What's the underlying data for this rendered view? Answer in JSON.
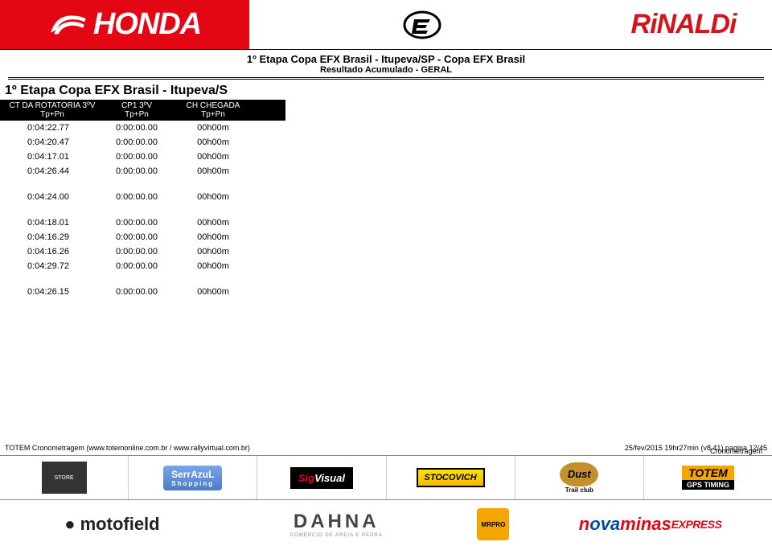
{
  "banner": {
    "honda": "HONDA",
    "rinaldi": "RiNALDi"
  },
  "header": {
    "title": "1º Etapa Copa EFX Brasil - Itupeva/SP - Copa EFX Brasil",
    "subtitle": "Resultado Acumulado - GERAL"
  },
  "event_title": "1º Etapa Copa EFX Brasil - Itupeva/S",
  "columns": {
    "c1_l1": "CT DA ROTATORIA 3ºV",
    "c1_l2": "Tp+Pn",
    "c2_l1": "CP1 3ºV",
    "c2_l2": "Tp+Pn",
    "c3_l1": "CH CHEGADA",
    "c3_l2": "Tp+Pn"
  },
  "rows": [
    {
      "v1": "0:04:22.77",
      "v2": "0:00:00.00",
      "v3": "00h00m",
      "gap_after": false
    },
    {
      "v1": "0:04:20.47",
      "v2": "0:00:00.00",
      "v3": "00h00m",
      "gap_after": false
    },
    {
      "v1": "0:04:17.01",
      "v2": "0:00:00.00",
      "v3": "00h00m",
      "gap_after": false
    },
    {
      "v1": "0:04:26.44",
      "v2": "0:00:00.00",
      "v3": "00h00m",
      "gap_after": true
    },
    {
      "v1": "0:04:24.00",
      "v2": "0:00:00.00",
      "v3": "00h00m",
      "gap_after": true
    },
    {
      "v1": "0:04:18.01",
      "v2": "0:00:00.00",
      "v3": "00h00m",
      "gap_after": false
    },
    {
      "v1": "0:04:16.29",
      "v2": "0:00:00.00",
      "v3": "00h00m",
      "gap_after": false
    },
    {
      "v1": "0:04:16.26",
      "v2": "0:00:00.00",
      "v3": "00h00m",
      "gap_after": false
    },
    {
      "v1": "0:04:29.72",
      "v2": "0:00:00.00",
      "v3": "00h00m",
      "gap_after": true
    },
    {
      "v1": "0:04:26.15",
      "v2": "0:00:00.00",
      "v3": "00h00m",
      "gap_after": false
    }
  ],
  "footer": {
    "left": "TOTEM Cronometragem (www.totemonline.com.br / www.rallyvirtual.com.br)",
    "right": "25/fev/2015  19hr27min (v8.41) pagina 12/45",
    "crono": "Cronometragem"
  },
  "sponsors": {
    "serrazul1": "SerrAzuL",
    "serrazul2": "Shopping",
    "sigvisual": "SigVisual",
    "stocovich": "STOCOVICH",
    "dust": "Dust",
    "dust2": "Trail club",
    "totem1": "TOTEM",
    "totem2": "GPS TIMING",
    "motofield": "● motofield",
    "dahna": "DAHNA",
    "dahna2": "COMÉRCIO DE AREIA E PEDRA",
    "mrpro": "MRPRO",
    "novaminas1a": "n",
    "novaminas1b": "ova",
    "novaminas1c": "minas",
    "novaminas2": "EXPRESS"
  },
  "colors": {
    "honda_red": "#e30613",
    "rinaldi_red": "#d4131b",
    "black": "#000000"
  }
}
